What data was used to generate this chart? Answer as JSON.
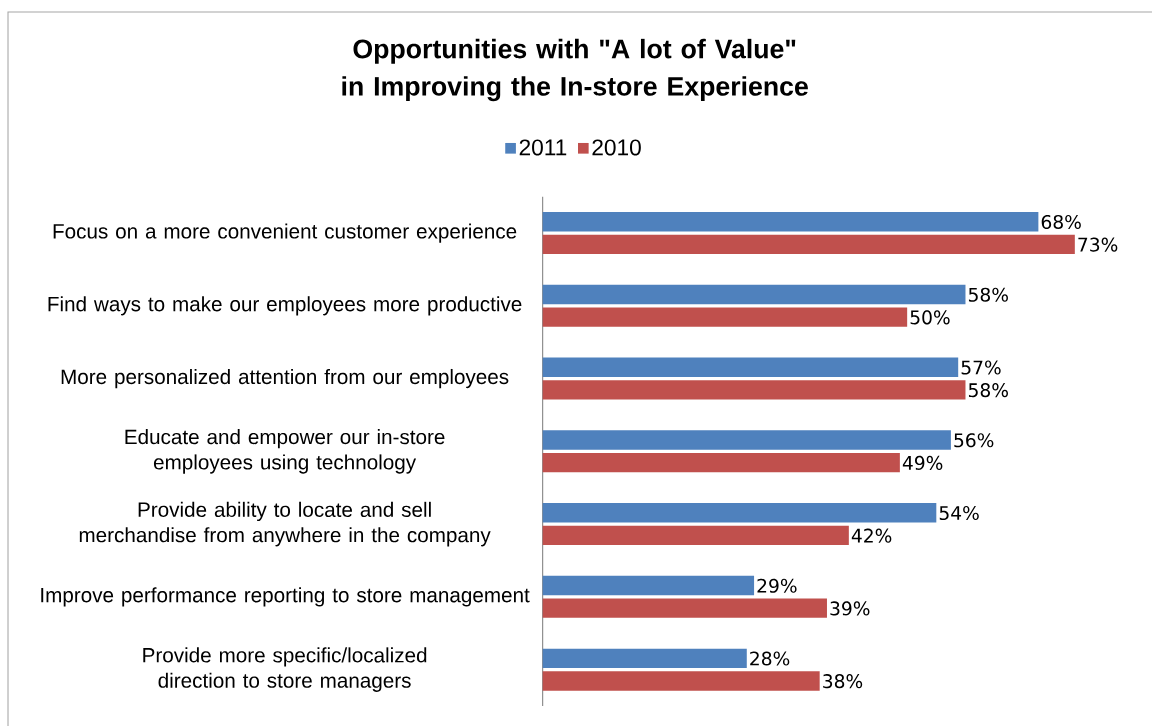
{
  "chart_data": {
    "type": "bar",
    "orientation": "horizontal",
    "title": "Opportunities with \"A lot of Value\" in Improving the In-store Experience",
    "categories": [
      "Focus on a more convenient customer experience",
      "Find ways to make our employees more productive",
      "More personalized attention from our employees",
      "Educate and empower our in-store employees using technology",
      "Provide ability to locate and sell merchandise from anywhere in the company",
      "Improve performance reporting to store management",
      "Provide more specific/localized direction to store managers"
    ],
    "series": [
      {
        "name": "2011",
        "color": "#4f81bd",
        "values": [
          68,
          58,
          57,
          56,
          54,
          29,
          28
        ],
        "value_labels": [
          "68%",
          "58%",
          "57%",
          "56%",
          "54%",
          "29%",
          "28%"
        ]
      },
      {
        "name": "2010",
        "color": "#c0504d",
        "values": [
          73,
          50,
          58,
          49,
          42,
          39,
          38
        ],
        "value_labels": [
          "73%",
          "50%",
          "58%",
          "49%",
          "42%",
          "39%",
          "38%"
        ]
      }
    ],
    "legend": "top"
  }
}
